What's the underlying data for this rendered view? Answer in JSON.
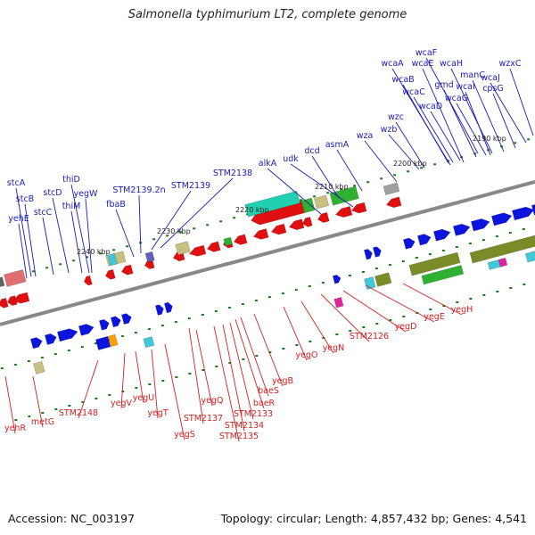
{
  "title": "Salmonella typhimurium LT2, complete genome",
  "footer": {
    "accession": "Accession: NC_003197",
    "topology": "Topology: circular; Length: 4,857,432 bp; Genes: 4,541"
  },
  "colors": {
    "forward_label": "#1a1ab4",
    "reverse_label": "#d42020",
    "blue_gene": "#0a14dc",
    "red_gene": "#e01010",
    "green_gene": "#30b030",
    "olive_gene": "#7a8c28",
    "teal_gene": "#20d0b0",
    "khaki_gene": "#c8c080",
    "cyan_gene": "#40c8d8",
    "magenta_gene": "#e0209c",
    "gray_gene": "#a0a0a0",
    "backbone": "#888888",
    "tick": "#1a7a1a"
  },
  "kbp_markers": [
    "2190 kbp",
    "2200 kbp",
    "2210 kbp",
    "2220 kbp",
    "2230 kbp",
    "2240 kbp"
  ],
  "upper_labels": [
    "wcaF",
    "wcaA",
    "wcaE",
    "wcaH",
    "wzxC",
    "wcaB",
    "manC",
    "wcaJ",
    "gmd",
    "wcaI",
    "cpsG",
    "wcaC",
    "wcaG",
    "wcaD",
    "wzc",
    "wzb",
    "wza",
    "asmA",
    "dcd",
    "udk",
    "alkA",
    "STM2138",
    "STM2139",
    "STM2139.2n",
    "fbaB",
    "stcA",
    "thiD",
    "stcB",
    "stcD",
    "yegW",
    "yehE",
    "stcC",
    "thiM"
  ],
  "lower_labels": [
    "yegH",
    "yegE",
    "yegD",
    "STM2126",
    "yegN",
    "yegO",
    "yegB",
    "baeS",
    "baeR",
    "STM2133",
    "STM2134",
    "STM2135",
    "STM2137",
    "yegQ",
    "yegS",
    "yegT",
    "yegU",
    "yegV",
    "STM2148",
    "metG",
    "yehR"
  ]
}
